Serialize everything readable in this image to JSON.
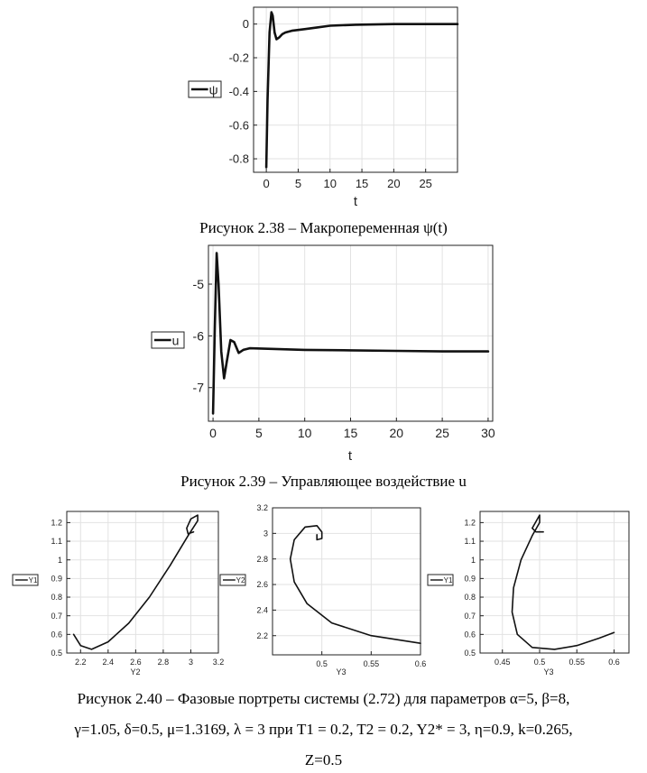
{
  "captions": {
    "fig238": "Рисунок 2.38 – Макропеременная ψ(t)",
    "fig239": "Рисунок 2.39 – Управляющее воздействие u",
    "fig240_line1": "Рисунок 2.40 – Фазовые портреты системы (2.72) для параметров α=5, β=8,",
    "fig240_line2": "γ=1.05, δ=0.5, μ=1.3169, λ = 3 при T1 = 0.2, T2 = 0.2, Y2* = 3, η=0.9, k=0.265,",
    "fig240_line3": "Z=0.5"
  },
  "chart_data": [
    {
      "type": "line",
      "xlabel": "t",
      "legend": [
        "ψ"
      ],
      "xlim": [
        -2,
        30
      ],
      "ylim": [
        -0.88,
        0.1
      ],
      "xticks": [
        "0",
        "5",
        "10",
        "15",
        "20",
        "25"
      ],
      "yticks": [
        "0",
        "-0.2",
        "-0.4",
        "-0.6",
        "-0.8"
      ],
      "x": [
        0,
        0.2,
        0.5,
        0.8,
        1.0,
        1.3,
        1.6,
        2.0,
        2.5,
        3.0,
        4.0,
        6.0,
        8.0,
        10,
        14,
        20,
        30
      ],
      "y": [
        -0.85,
        -0.45,
        -0.05,
        0.07,
        0.05,
        -0.05,
        -0.09,
        -0.08,
        -0.06,
        -0.05,
        -0.04,
        -0.03,
        -0.02,
        -0.01,
        -0.004,
        0,
        0
      ]
    },
    {
      "type": "line",
      "xlabel": "t",
      "legend": [
        "u"
      ],
      "xlim": [
        -0.5,
        30.5
      ],
      "ylim": [
        -7.65,
        -4.25
      ],
      "xticks": [
        "0",
        "5",
        "10",
        "15",
        "20",
        "25",
        "30"
      ],
      "yticks": [
        "-5",
        "-6",
        "-7"
      ],
      "x": [
        0,
        0.2,
        0.4,
        0.6,
        0.9,
        1.2,
        1.5,
        1.9,
        2.3,
        2.8,
        3.3,
        4.0,
        6.0,
        10,
        15,
        20,
        25,
        30
      ],
      "y": [
        -7.5,
        -5.8,
        -4.4,
        -5.0,
        -6.3,
        -6.82,
        -6.5,
        -6.08,
        -6.12,
        -6.33,
        -6.27,
        -6.24,
        -6.25,
        -6.27,
        -6.28,
        -6.29,
        -6.3,
        -6.3
      ]
    },
    {
      "type": "line",
      "xlabel": "Y2",
      "legend": [
        "Y1"
      ],
      "xlim": [
        2.1,
        3.2
      ],
      "ylim": [
        0.5,
        1.26
      ],
      "xticks": [
        "2.2",
        "2.4",
        "2.6",
        "2.8",
        "3",
        "3.2"
      ],
      "yticks": [
        "0.5",
        "0.6",
        "0.7",
        "0.8",
        "0.9",
        "1",
        "1.1",
        "1.2"
      ],
      "x": [
        2.15,
        2.2,
        2.28,
        2.4,
        2.55,
        2.7,
        2.85,
        2.98,
        3.05,
        3.05,
        3.0,
        2.97,
        2.98,
        3.02
      ],
      "y": [
        0.6,
        0.54,
        0.52,
        0.56,
        0.66,
        0.8,
        0.97,
        1.13,
        1.21,
        1.24,
        1.22,
        1.17,
        1.14,
        1.15
      ]
    },
    {
      "type": "line",
      "xlabel": "Y3",
      "legend": [
        "Y2"
      ],
      "xlim": [
        0.45,
        0.6
      ],
      "ylim": [
        2.05,
        3.2
      ],
      "xticks": [
        "0.5",
        "0.55",
        "0.6"
      ],
      "yticks": [
        "2.2",
        "2.4",
        "2.6",
        "2.8",
        "3",
        "3.2"
      ],
      "x": [
        0.6,
        0.55,
        0.51,
        0.485,
        0.472,
        0.468,
        0.472,
        0.483,
        0.495,
        0.5,
        0.5,
        0.495,
        0.495
      ],
      "y": [
        2.14,
        2.2,
        2.3,
        2.45,
        2.62,
        2.8,
        2.95,
        3.05,
        3.06,
        3.01,
        2.96,
        2.95,
        2.99
      ]
    },
    {
      "type": "line",
      "xlabel": "Y3",
      "legend": [
        "Y1"
      ],
      "xlim": [
        0.42,
        0.62
      ],
      "ylim": [
        0.5,
        1.26
      ],
      "xticks": [
        "0.45",
        "0.5",
        "0.55",
        "0.6"
      ],
      "yticks": [
        "0.5",
        "0.6",
        "0.7",
        "0.8",
        "0.9",
        "1",
        "1.1",
        "1.2"
      ],
      "x": [
        0.6,
        0.58,
        0.55,
        0.52,
        0.49,
        0.47,
        0.463,
        0.465,
        0.475,
        0.49,
        0.5,
        0.5,
        0.49,
        0.495,
        0.505
      ],
      "y": [
        0.61,
        0.58,
        0.54,
        0.52,
        0.53,
        0.6,
        0.72,
        0.85,
        1.0,
        1.13,
        1.2,
        1.24,
        1.17,
        1.15,
        1.15
      ]
    }
  ]
}
